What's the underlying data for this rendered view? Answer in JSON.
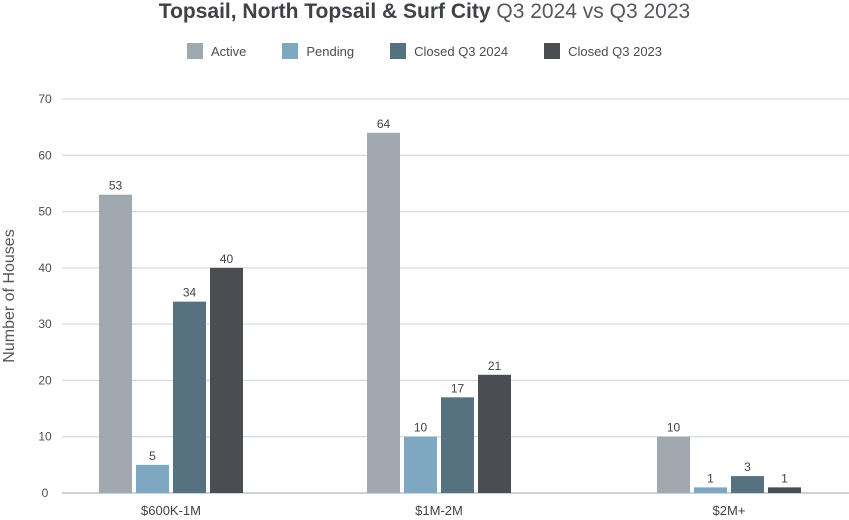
{
  "chart_data": {
    "type": "bar",
    "title": "Topsail, North Topsail & Surf City",
    "subtitle": "Q3 2024 vs Q3 2023",
    "ylabel": "Number of Houses",
    "xlabel": "",
    "ylim": [
      0,
      70
    ],
    "yticks": [
      0,
      10,
      20,
      30,
      40,
      50,
      60,
      70
    ],
    "grid": true,
    "legend_position": "top-center",
    "categories": [
      "$600K-1M",
      "$1M-2M",
      "$2M+"
    ],
    "series": [
      {
        "name": "Active",
        "color": "#a2a8b0",
        "values": [
          53,
          64,
          10
        ]
      },
      {
        "name": "Pending",
        "color": "#7ea7c1",
        "values": [
          5,
          10,
          1
        ]
      },
      {
        "name": "Closed Q3 2024",
        "color": "#56717f",
        "values": [
          34,
          17,
          3
        ]
      },
      {
        "name": "Closed Q3 2023",
        "color": "#4a4d52",
        "values": [
          40,
          21,
          1
        ]
      }
    ]
  }
}
